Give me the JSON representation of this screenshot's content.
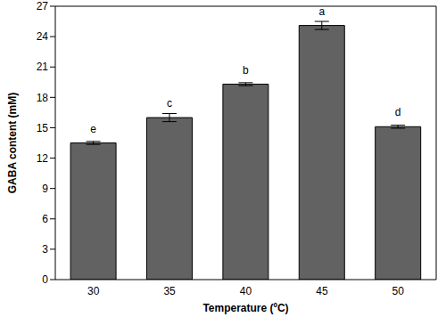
{
  "chart_data": {
    "type": "bar",
    "x_label": "Temperature (ºC)",
    "y_label": "GABA content (mM)",
    "categories": [
      "30",
      "35",
      "40",
      "45",
      "50"
    ],
    "values": [
      13.5,
      16.0,
      19.3,
      25.1,
      15.1
    ],
    "errors": [
      0.15,
      0.4,
      0.15,
      0.4,
      0.15
    ],
    "letters": [
      "e",
      "c",
      "b",
      "a",
      "d"
    ],
    "color": "#626262",
    "ylim": [
      0,
      27
    ],
    "yticks": [
      0,
      3,
      6,
      9,
      12,
      15,
      18,
      21,
      24,
      27
    ],
    "grid": false
  }
}
